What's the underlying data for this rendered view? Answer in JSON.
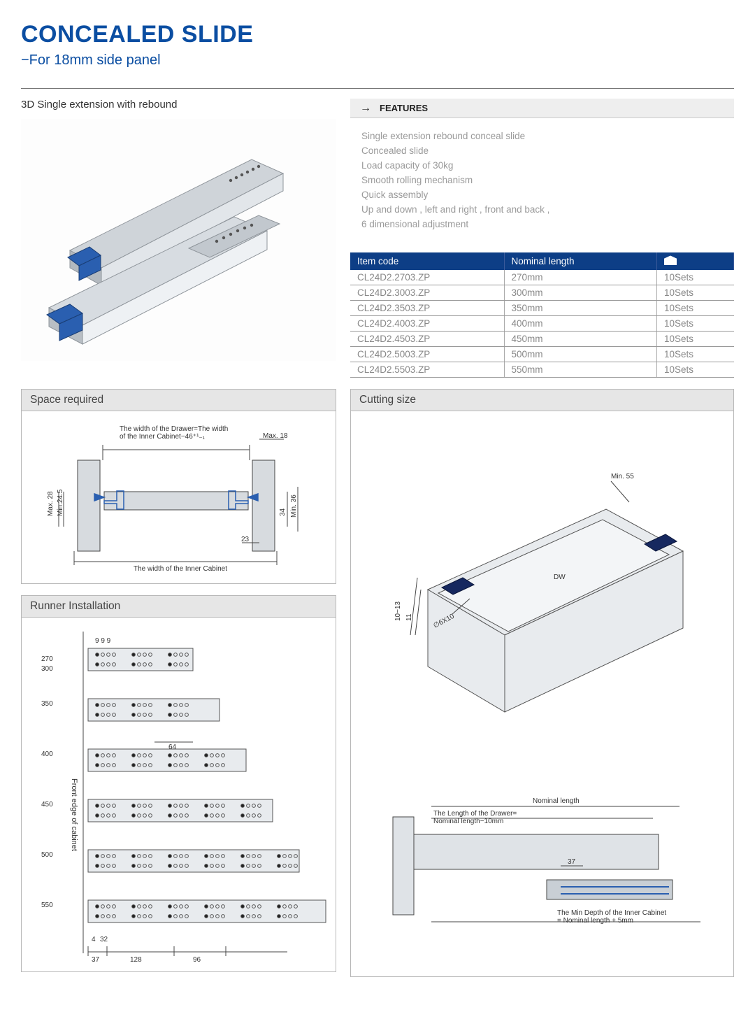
{
  "colors": {
    "brand": "#0b4ea2",
    "tableHeader": "#0d3e86",
    "gray": "#888",
    "panelHead": "#e6e6e6",
    "border": "#b8b8b8",
    "steel": "#c8cdd2",
    "steelDark": "#a5aab0",
    "accent": "#2a5fb0"
  },
  "header": {
    "title": "CONCEALED SLIDE",
    "subtitle": "−For 18mm side panel"
  },
  "product_label": "3D Single extension with rebound",
  "features": {
    "heading": "FEATURES",
    "lines": [
      "Single extension rebound conceal slide",
      "Concealed slide",
      "Load capacity of 30kg",
      "Smooth rolling mechanism",
      "Quick assembly",
      "Up and down , left and right , front and back ,",
      "6 dimensional adjustment"
    ]
  },
  "table": {
    "columns": [
      "Item code",
      "Nominal length",
      ""
    ],
    "rows": [
      [
        "CL24D2.2703.ZP",
        "270mm",
        "10Sets"
      ],
      [
        "CL24D2.3003.ZP",
        "300mm",
        "10Sets"
      ],
      [
        "CL24D2.3503.ZP",
        "350mm",
        "10Sets"
      ],
      [
        "CL24D2.4003.ZP",
        "400mm",
        "10Sets"
      ],
      [
        "CL24D2.4503.ZP",
        "450mm",
        "10Sets"
      ],
      [
        "CL24D2.5003.ZP",
        "500mm",
        "10Sets"
      ],
      [
        "CL24D2.5503.ZP",
        "550mm",
        "10Sets"
      ]
    ]
  },
  "panels": {
    "space": "Space required",
    "runner": "Runner Installation",
    "cutting": "Cutting size"
  },
  "space_diagram": {
    "note_top": "The width of the Drawer=The width\nof the Inner Cabinet−46⁺¹₋₁",
    "max18": "Max. 18",
    "max28": "Max. 28",
    "min245": "Min.24.5",
    "d34": "34",
    "min36": "Min. 36",
    "d23": "23",
    "bottom": "The width of the Inner Cabinet"
  },
  "runner_diagram": {
    "yaxis_label": "Front edge of cabinet",
    "lengths": [
      270,
      300,
      350,
      400,
      450,
      500,
      550
    ],
    "top_dims": "9 9 9",
    "d64": "64",
    "d4": "4",
    "d32": "32",
    "d37": "37",
    "d128": "128",
    "d96": "96"
  },
  "cutting_diagram": {
    "min55": "Min. 55",
    "dw": "DW",
    "v10_13": "10~13",
    "v11": "11",
    "hole": "∅6X10",
    "nominal": "Nominal length",
    "drawer_len": "The Length of the Drawer=\nNominal length−10mm",
    "d37": "37",
    "min_depth": "The Min Depth of the Inner Cabinet\n= Nominal length + 5mm"
  }
}
